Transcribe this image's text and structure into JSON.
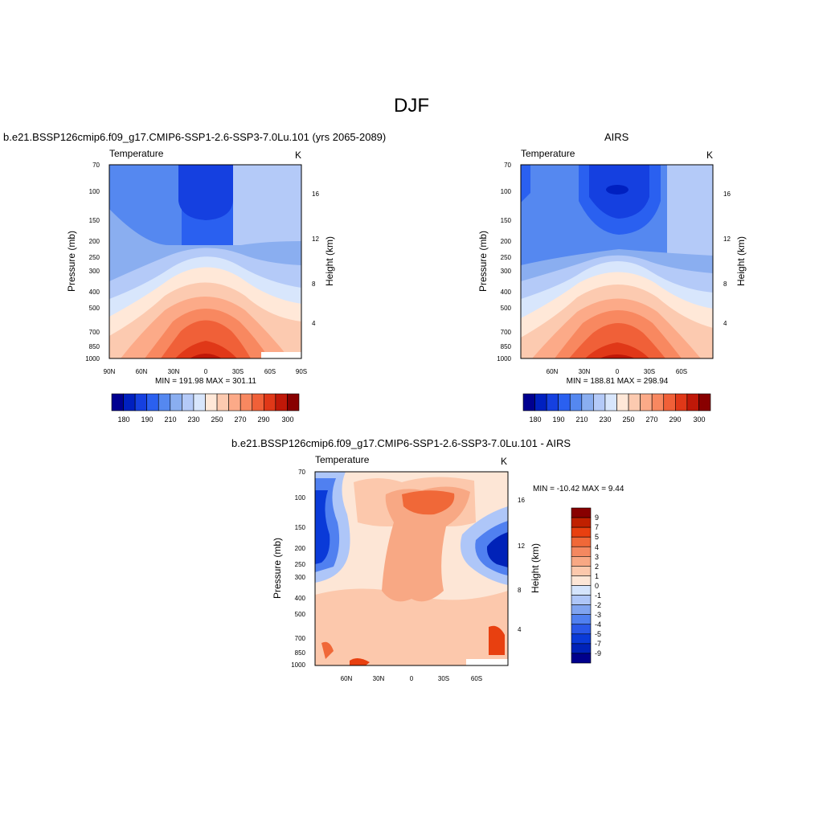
{
  "page_title": "DJF",
  "colors": {
    "tmap": [
      "#000090",
      "#0020c0",
      "#1540e0",
      "#2a60f0",
      "#5588f0",
      "#8aaef0",
      "#b4caf8",
      "#d8e6fc",
      "#ffe8d8",
      "#fccab0",
      "#fcaa88",
      "#f88860",
      "#f06038",
      "#e03818",
      "#c01808",
      "#880000"
    ],
    "dmap": [
      "#00008c",
      "#0022b8",
      "#0a3ad8",
      "#2a58e8",
      "#5080f0",
      "#80a4f0",
      "#aec6f8",
      "#d4e4fc",
      "#fde6d6",
      "#fcc8ac",
      "#f8a884",
      "#f48860",
      "#f06838",
      "#e84010",
      "#c02000",
      "#880000"
    ]
  },
  "chart_data": [
    {
      "type": "heatmap",
      "subtitle": "b.e21.BSSP126cmip6.f09_g17.CMIP6-SSP1-2.6-SSP3-7.0Lu.101 (yrs 2065-2089)",
      "title": "Temperature",
      "units": "K",
      "ylabel": "Pressure (mb)",
      "ylabel_right": "Height (km)",
      "x_ticks": [
        "90N",
        "60N",
        "30N",
        "0",
        "30S",
        "60S",
        "90S"
      ],
      "y_ticks": [
        "70",
        "100",
        "150",
        "200",
        "250",
        "300",
        "400",
        "500",
        "700",
        "850",
        "1000"
      ],
      "y_right_ticks": [
        "16",
        "12",
        "8",
        "4"
      ],
      "stats": "MIN = 191.98  MAX = 301.11",
      "colorbar_labels": [
        "180",
        "190",
        "210",
        "230",
        "250",
        "270",
        "290",
        "300"
      ]
    },
    {
      "type": "heatmap",
      "subtitle": "AIRS",
      "title": "Temperature",
      "units": "K",
      "ylabel": "Pressure (mb)",
      "ylabel_right": "Height (km)",
      "x_ticks": [
        "60N",
        "30N",
        "0",
        "30S",
        "60S"
      ],
      "y_ticks": [
        "70",
        "100",
        "150",
        "200",
        "250",
        "300",
        "400",
        "500",
        "700",
        "850",
        "1000"
      ],
      "y_right_ticks": [
        "16",
        "12",
        "8",
        "4"
      ],
      "stats": "MIN = 188.81  MAX = 298.94",
      "colorbar_labels": [
        "180",
        "190",
        "210",
        "230",
        "250",
        "270",
        "290",
        "300"
      ]
    },
    {
      "type": "heatmap",
      "subtitle": "b.e21.BSSP126cmip6.f09_g17.CMIP6-SSP1-2.6-SSP3-7.0Lu.101 - AIRS",
      "title": "Temperature",
      "units": "K",
      "ylabel": "Pressure (mb)",
      "ylabel_right": "Height (km)",
      "x_ticks": [
        "60N",
        "30N",
        "0",
        "30S",
        "60S"
      ],
      "y_ticks": [
        "70",
        "100",
        "150",
        "200",
        "250",
        "300",
        "400",
        "500",
        "700",
        "850",
        "1000"
      ],
      "y_right_ticks": [
        "16",
        "12",
        "8",
        "4"
      ],
      "stats": "MIN = -10.42  MAX =   9.44",
      "colorbar_labels": [
        "9",
        "7",
        "5",
        "4",
        "3",
        "2",
        "1",
        "0",
        "-1",
        "-2",
        "-3",
        "-4",
        "-5",
        "-7",
        "-9"
      ]
    }
  ]
}
